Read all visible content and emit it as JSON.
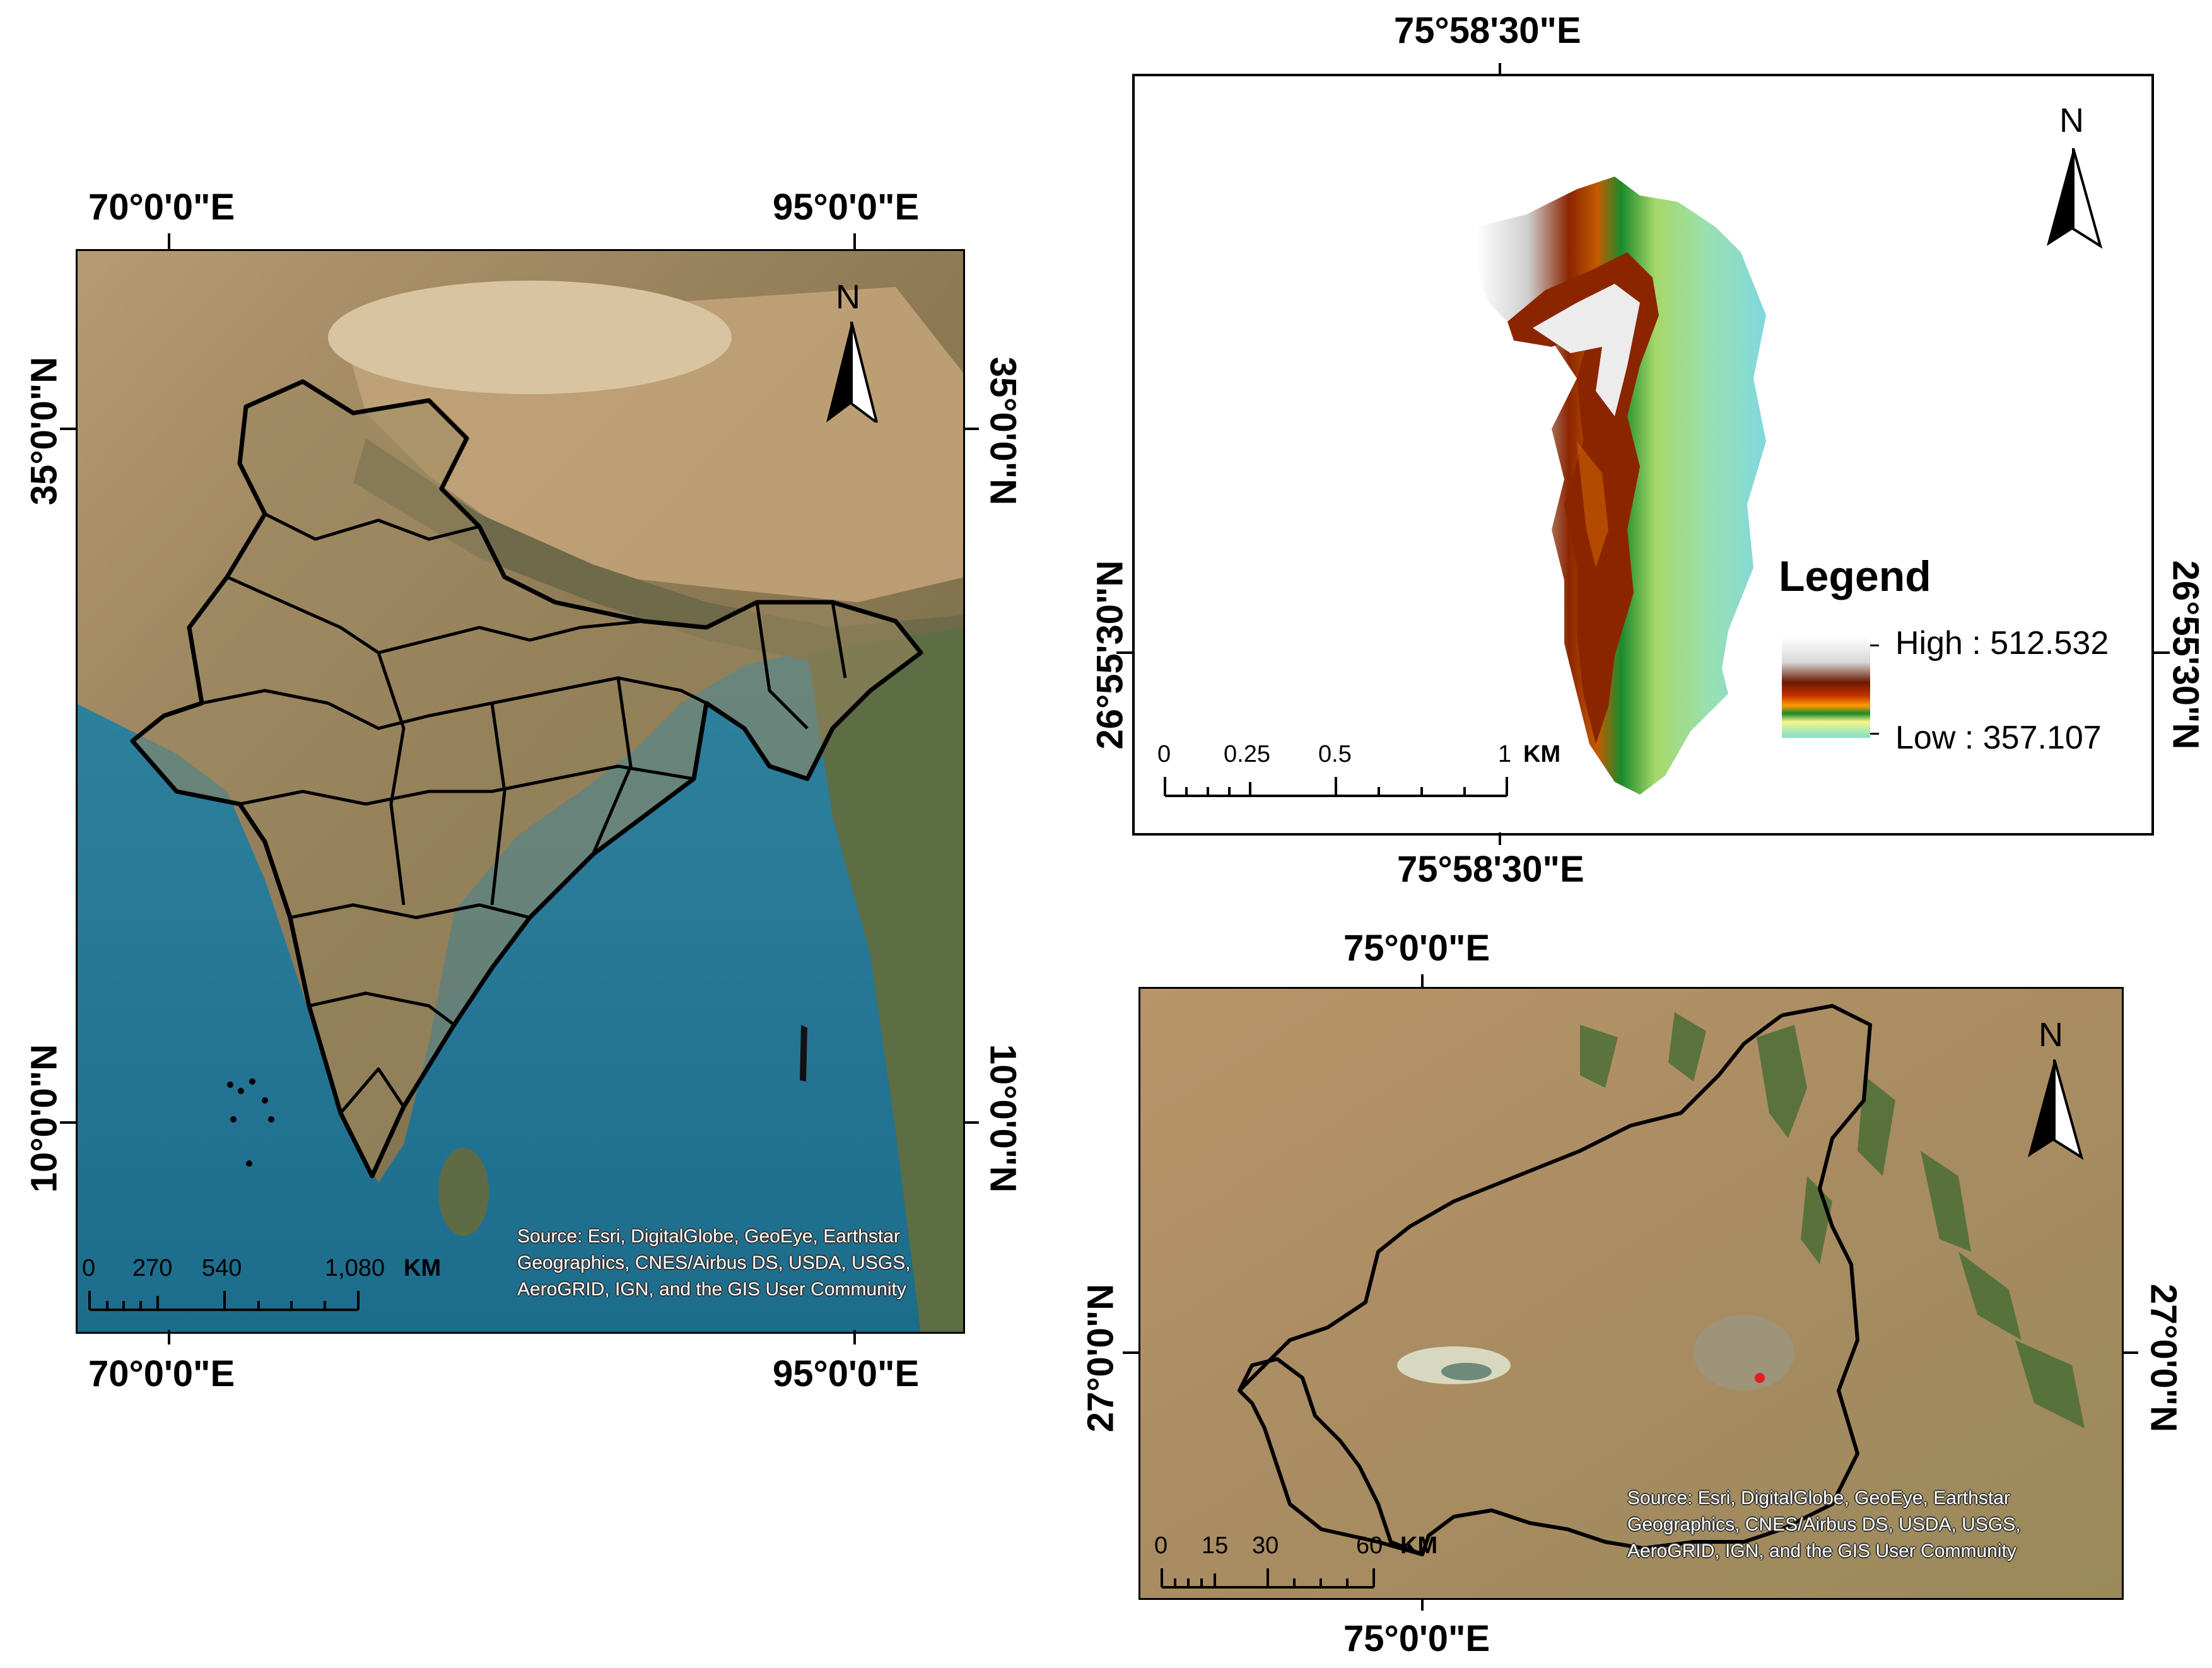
{
  "india_map": {
    "top_lon_left": "70°0'0\"E",
    "top_lon_right": "95°0'0\"E",
    "bottom_lon_left": "70°0'0\"E",
    "bottom_lon_right": "95°0'0\"E",
    "lat_top": "35°0'0\"N",
    "lat_bottom": "10°0'0\"N",
    "north_label": "N",
    "scale_labels": [
      "0",
      "270",
      "540",
      "1,080"
    ],
    "scale_unit": "KM",
    "source": "Source: Esri, DigitalGlobe, GeoEye, Earthstar Geographics, CNES/Airbus DS, USDA, USGS, AeroGRID, IGN, and the GIS User Community"
  },
  "dem_map": {
    "top_lon": "75°58'30\"E",
    "bottom_lon": "75°58'30\"E",
    "lat": "26°55'30\"N",
    "north_label": "N",
    "legend_title": "Legend",
    "legend_high": "High : 512.532",
    "legend_low": "Low : 357.107",
    "scale_labels": [
      "0",
      "0.25",
      "0.5",
      "1"
    ],
    "scale_unit": "KM"
  },
  "district_map": {
    "top_lon": "75°0'0\"E",
    "bottom_lon": "75°0'0\"E",
    "lat": "27°0'0\"N",
    "north_label": "N",
    "scale_labels": [
      "0",
      "15",
      "30",
      "60"
    ],
    "scale_unit": "KM",
    "source": "Source: Esri, DigitalGlobe, GeoEye, Earthstar Geographics, CNES/Airbus DS, USDA, USGS, AeroGRID, IGN, and the GIS User Community"
  },
  "colors": {
    "ocean": "#2a7f9a",
    "land": "#a08a66",
    "desert": "#c8a877",
    "district_land": "#b0916a",
    "dem_high": "#ffffff",
    "dem_mid": "#8b2500",
    "dem_low": "#7fe0d0"
  }
}
